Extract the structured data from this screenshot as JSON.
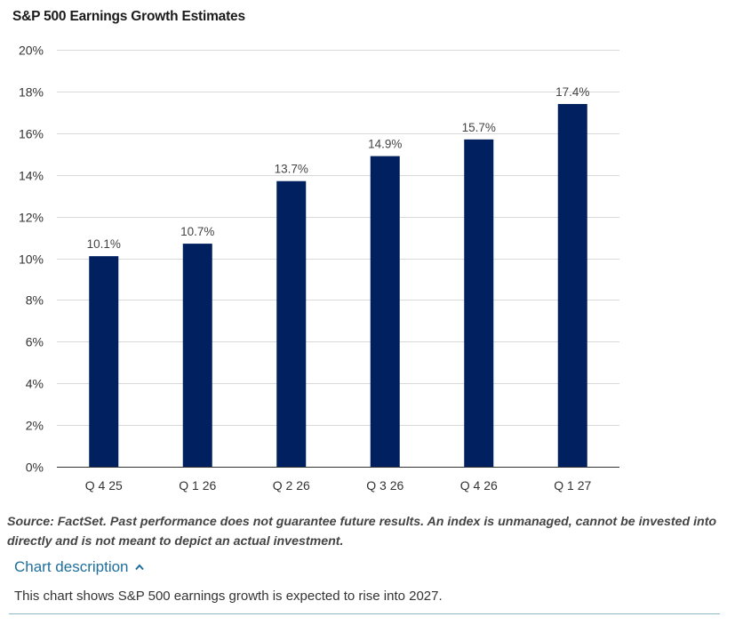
{
  "chart_data": {
    "type": "bar",
    "title": "S&P 500 Earnings Growth Estimates",
    "categories": [
      "Q 4 25",
      "Q 1 26",
      "Q 2 26",
      "Q 3 26",
      "Q 4 26",
      "Q 1 27"
    ],
    "values": [
      10.1,
      10.7,
      13.7,
      14.9,
      15.7,
      17.4
    ],
    "data_labels": [
      "10.1%",
      "10.7%",
      "13.7%",
      "14.9%",
      "15.7%",
      "17.4%"
    ],
    "y_ticks": [
      0,
      2,
      4,
      6,
      8,
      10,
      12,
      14,
      16,
      18,
      20
    ],
    "y_tick_labels": [
      "0%",
      "2%",
      "4%",
      "6%",
      "8%",
      "10%",
      "12%",
      "14%",
      "16%",
      "18%",
      "20%"
    ],
    "ylim": [
      0,
      20
    ],
    "xlabel": "",
    "ylabel": "",
    "grid": true,
    "bar_color": "#002060",
    "grid_color": "#d9d9d9"
  },
  "source_note": "Source: FactSet. Past performance does not guarantee future results. An index is unmanaged, cannot be invested into directly and is not meant to depict an actual investment.",
  "description": {
    "toggle_label": "Chart description",
    "toggle_icon": "chevron-up-icon",
    "text": "This chart shows S&P 500 earnings growth is expected to rise into 2027.",
    "accent_color": "#1f6f9c"
  }
}
